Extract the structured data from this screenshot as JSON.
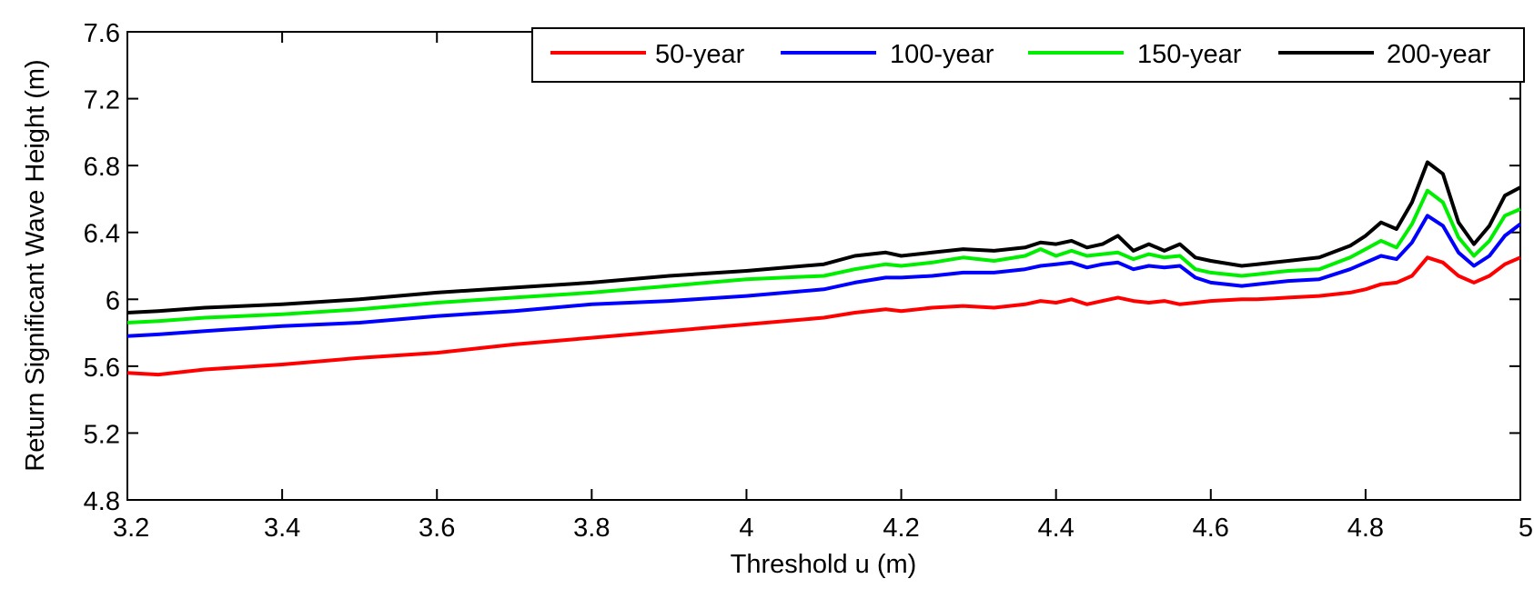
{
  "chart_data": {
    "type": "line",
    "title": "",
    "xlabel": "Threshold u (m)",
    "ylabel": "Return Significant Wave Height (m)",
    "xlim": [
      3.2,
      5.0
    ],
    "ylim": [
      4.8,
      7.6
    ],
    "grid": false,
    "legend_position": "top-right",
    "xticks": [
      3.2,
      3.4,
      3.6,
      3.8,
      4.0,
      4.2,
      4.4,
      4.6,
      4.8,
      5.0
    ],
    "xtick_labels": [
      "3.2",
      "3.4",
      "3.6",
      "3.8",
      "4",
      "4.2",
      "4.4",
      "4.6",
      "4.8",
      "5"
    ],
    "yticks": [
      4.8,
      5.2,
      5.6,
      6.0,
      6.4,
      6.8,
      7.2,
      7.6
    ],
    "ytick_labels": [
      "4.8",
      "5.2",
      "5.6",
      "6",
      "6.4",
      "6.8",
      "7.2",
      "7.6"
    ],
    "x": [
      3.2,
      3.24,
      3.3,
      3.4,
      3.5,
      3.6,
      3.7,
      3.8,
      3.9,
      4.0,
      4.1,
      4.14,
      4.18,
      4.2,
      4.24,
      4.28,
      4.32,
      4.36,
      4.38,
      4.4,
      4.42,
      4.44,
      4.46,
      4.48,
      4.5,
      4.52,
      4.54,
      4.56,
      4.58,
      4.6,
      4.64,
      4.66,
      4.7,
      4.74,
      4.78,
      4.8,
      4.82,
      4.84,
      4.86,
      4.88,
      4.9,
      4.92,
      4.94,
      4.96,
      4.98,
      5.0
    ],
    "series": [
      {
        "name": "50-year",
        "color": "#ff0000",
        "values": [
          5.56,
          5.55,
          5.58,
          5.61,
          5.65,
          5.68,
          5.73,
          5.77,
          5.81,
          5.85,
          5.89,
          5.92,
          5.94,
          5.93,
          5.95,
          5.96,
          5.95,
          5.97,
          5.99,
          5.98,
          6.0,
          5.97,
          5.99,
          6.01,
          5.99,
          5.98,
          5.99,
          5.97,
          5.98,
          5.99,
          6.0,
          6.0,
          6.01,
          6.02,
          6.04,
          6.06,
          6.09,
          6.1,
          6.14,
          6.25,
          6.22,
          6.14,
          6.1,
          6.14,
          6.21,
          6.25
        ]
      },
      {
        "name": "100-year",
        "color": "#0000ff",
        "values": [
          5.78,
          5.79,
          5.81,
          5.84,
          5.86,
          5.9,
          5.93,
          5.97,
          5.99,
          6.02,
          6.06,
          6.1,
          6.13,
          6.13,
          6.14,
          6.16,
          6.16,
          6.18,
          6.2,
          6.21,
          6.22,
          6.19,
          6.21,
          6.22,
          6.18,
          6.2,
          6.19,
          6.2,
          6.13,
          6.1,
          6.08,
          6.09,
          6.11,
          6.12,
          6.18,
          6.22,
          6.26,
          6.24,
          6.34,
          6.5,
          6.44,
          6.28,
          6.2,
          6.26,
          6.38,
          6.45
        ]
      },
      {
        "name": "150-year",
        "color": "#00ee00",
        "values": [
          5.86,
          5.87,
          5.89,
          5.91,
          5.94,
          5.98,
          6.01,
          6.04,
          6.08,
          6.12,
          6.14,
          6.18,
          6.21,
          6.2,
          6.22,
          6.25,
          6.23,
          6.26,
          6.3,
          6.26,
          6.29,
          6.26,
          6.27,
          6.28,
          6.24,
          6.27,
          6.25,
          6.26,
          6.18,
          6.16,
          6.14,
          6.15,
          6.17,
          6.18,
          6.25,
          6.3,
          6.35,
          6.31,
          6.45,
          6.65,
          6.58,
          6.37,
          6.26,
          6.35,
          6.5,
          6.54
        ]
      },
      {
        "name": "200-year",
        "color": "#000000",
        "values": [
          5.92,
          5.93,
          5.95,
          5.97,
          6.0,
          6.04,
          6.07,
          6.1,
          6.14,
          6.17,
          6.21,
          6.26,
          6.28,
          6.26,
          6.28,
          6.3,
          6.29,
          6.31,
          6.34,
          6.33,
          6.35,
          6.31,
          6.33,
          6.38,
          6.29,
          6.33,
          6.29,
          6.33,
          6.25,
          6.23,
          6.2,
          6.21,
          6.23,
          6.25,
          6.32,
          6.38,
          6.46,
          6.42,
          6.58,
          6.82,
          6.75,
          6.46,
          6.33,
          6.44,
          6.62,
          6.67
        ]
      }
    ]
  }
}
